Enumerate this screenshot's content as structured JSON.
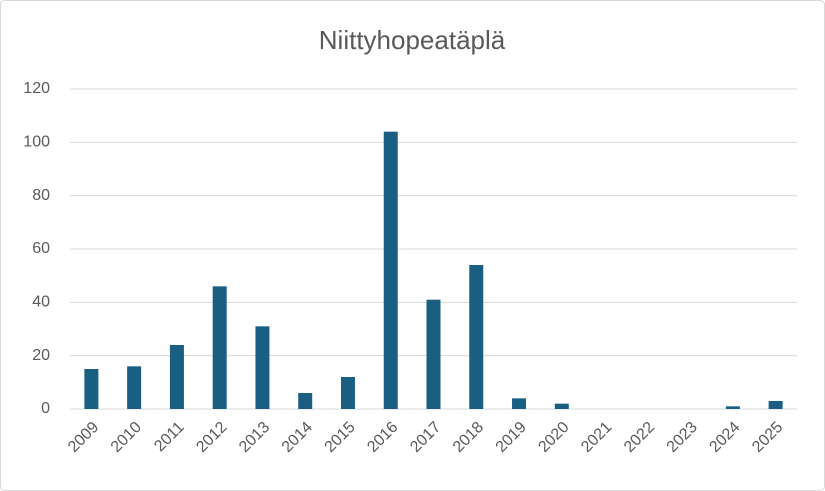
{
  "chart_data": {
    "type": "bar",
    "title": "Niittyhopeatäplä",
    "categories": [
      "2009",
      "2010",
      "2011",
      "2012",
      "2013",
      "2014",
      "2015",
      "2016",
      "2017",
      "2018",
      "2019",
      "2020",
      "2021",
      "2022",
      "2023",
      "2024",
      "2025"
    ],
    "values": [
      15,
      16,
      24,
      46,
      31,
      6,
      12,
      104,
      41,
      54,
      4,
      2,
      0,
      0,
      0,
      1,
      3
    ],
    "color": "#1a5f82",
    "ylim": [
      0,
      120
    ],
    "yticks": [
      0,
      20,
      40,
      60,
      80,
      100,
      120
    ],
    "grid": true
  }
}
